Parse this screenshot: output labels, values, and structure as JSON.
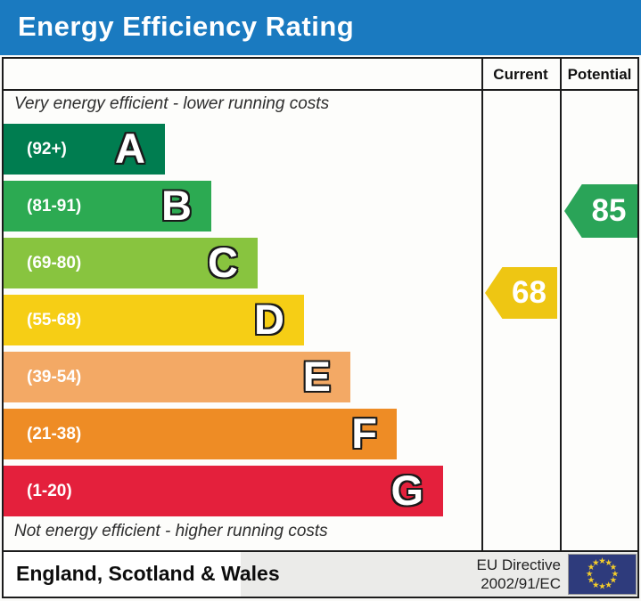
{
  "title": "Energy Efficiency Rating",
  "header": {
    "current": "Current",
    "potential": "Potential"
  },
  "notes": {
    "top": "Very energy efficient - lower running costs",
    "bottom": "Not energy efficient - higher running costs"
  },
  "bands": [
    {
      "letter": "A",
      "range": "(92+)",
      "color": "#007d50"
    },
    {
      "letter": "B",
      "range": "(81-91)",
      "color": "#2caa52"
    },
    {
      "letter": "C",
      "range": "(69-80)",
      "color": "#88c43f"
    },
    {
      "letter": "D",
      "range": "(55-68)",
      "color": "#f6ce15"
    },
    {
      "letter": "E",
      "range": "(39-54)",
      "color": "#f3a965"
    },
    {
      "letter": "F",
      "range": "(21-38)",
      "color": "#ee8c25"
    },
    {
      "letter": "G",
      "range": "(1-20)",
      "color": "#e4203c"
    }
  ],
  "markers": {
    "current": {
      "value": "68",
      "color": "#eec613"
    },
    "potential": {
      "value": "85",
      "color": "#2aa458"
    }
  },
  "footer": {
    "region": "England, Scotland & Wales",
    "directive": [
      "EU Directive",
      "2002/91/EC"
    ]
  },
  "colors": {
    "title_bg": "#1a7ac0",
    "border": "#1c1c1c",
    "eu_flag_bg": "#2e3b7c",
    "eu_star": "#f4cd2a"
  },
  "chart_data": {
    "type": "bar",
    "title": "Energy Efficiency Rating",
    "orientation": "horizontal",
    "categories": [
      "A",
      "B",
      "C",
      "D",
      "E",
      "F",
      "G"
    ],
    "band_ranges": [
      "92+",
      "81-91",
      "69-80",
      "55-68",
      "39-54",
      "21-38",
      "1-20"
    ],
    "band_colors": [
      "#007d50",
      "#2caa52",
      "#88c43f",
      "#f6ce15",
      "#f3a965",
      "#ee8c25",
      "#e4203c"
    ],
    "series": [
      {
        "name": "Current",
        "values": [
          68
        ],
        "band": "D",
        "color": "#eec613"
      },
      {
        "name": "Potential",
        "values": [
          85
        ],
        "band": "B",
        "color": "#2aa458"
      }
    ],
    "annotations": [
      "Very energy efficient - lower running costs",
      "Not energy efficient - higher running costs",
      "England, Scotland & Wales",
      "EU Directive 2002/91/EC"
    ],
    "legend_position": "none",
    "grid": false
  }
}
